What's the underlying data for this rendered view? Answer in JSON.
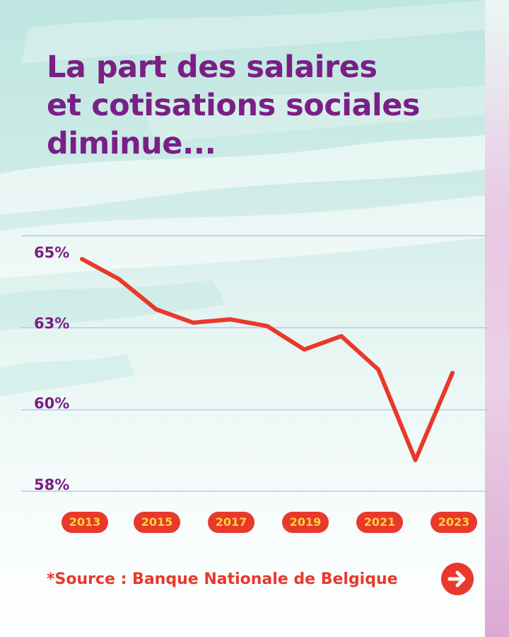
{
  "title": {
    "line1": "La part des salaires",
    "line2": "et cotisations sociales",
    "line3": "diminue..."
  },
  "chart_data": {
    "type": "line",
    "title": "La part des salaires et cotisations sociales diminue...",
    "x": [
      2013,
      2014,
      2015,
      2016,
      2017,
      2018,
      2019,
      2020,
      2021,
      2022,
      2023
    ],
    "values": [
      64.8,
      64.2,
      63.3,
      62.9,
      63.0,
      62.8,
      62.1,
      62.5,
      61.5,
      58.8,
      61.4
    ],
    "y_tick_labels": [
      "65%",
      "63%",
      "60%",
      "58%"
    ],
    "x_tick_labels": [
      "2013",
      "2015",
      "2017",
      "2019",
      "2021",
      "2023"
    ],
    "grid": true,
    "line_color": "#e8392c"
  },
  "source": "*Source : Banque Nationale de Belgique",
  "colors": {
    "title": "#7a1f86",
    "accent": "#e8392c",
    "pill_text": "#ffd23a",
    "grid": "#b8c9ec"
  },
  "icons": {
    "next": "arrow-right-icon"
  }
}
